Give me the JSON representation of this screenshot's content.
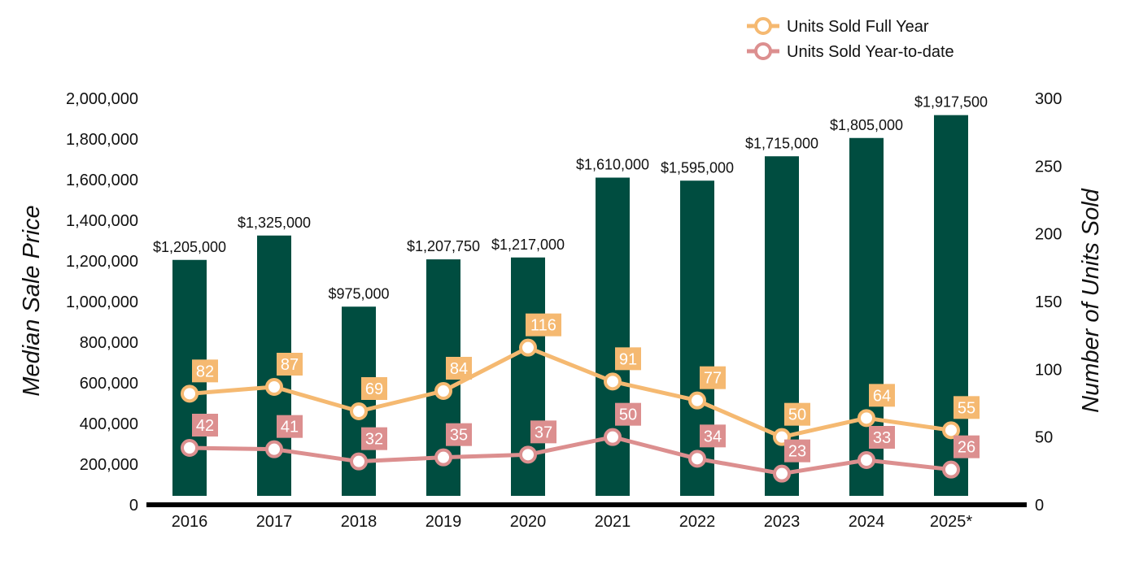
{
  "chart_data": {
    "type": "bar",
    "categories": [
      "2016",
      "2017",
      "2018",
      "2019",
      "2020",
      "2021",
      "2022",
      "2023",
      "2024",
      "2025*"
    ],
    "bars": {
      "values": [
        1205000,
        1325000,
        975000,
        1207750,
        1217000,
        1610000,
        1595000,
        1715000,
        1805000,
        1917500
      ],
      "labels": [
        "$1,205,000",
        "$1,325,000",
        "$975,000",
        "$1,207,750",
        "$1,217,000",
        "$1,610,000",
        "$1,595,000",
        "$1,715,000",
        "$1,805,000",
        "$1,917,500"
      ],
      "color": "#004d40"
    },
    "series": [
      {
        "name": "Units Sold Full Year",
        "type": "line",
        "axis": "right",
        "color": "#f5b971",
        "values": [
          82,
          87,
          69,
          84,
          116,
          91,
          77,
          50,
          64,
          55
        ]
      },
      {
        "name": "Units Sold Year-to-date",
        "type": "line",
        "axis": "right",
        "color": "#dc8f8f",
        "values": [
          42,
          41,
          32,
          35,
          37,
          50,
          34,
          23,
          33,
          26
        ]
      }
    ],
    "ylabel": "Median Sale Price",
    "y2label": "Number of Units Sold",
    "ylim": [
      0,
      2000000
    ],
    "y2lim": [
      0,
      300
    ],
    "yticks": [
      "0",
      "200,000",
      "400,000",
      "600,000",
      "800,000",
      "1,000,000",
      "1,200,000",
      "1,400,000",
      "1,600,000",
      "1,800,000",
      "2,000,000"
    ],
    "y2ticks": [
      "0",
      "50",
      "100",
      "150",
      "200",
      "250",
      "300"
    ],
    "legend": "top-right",
    "grid": false
  }
}
